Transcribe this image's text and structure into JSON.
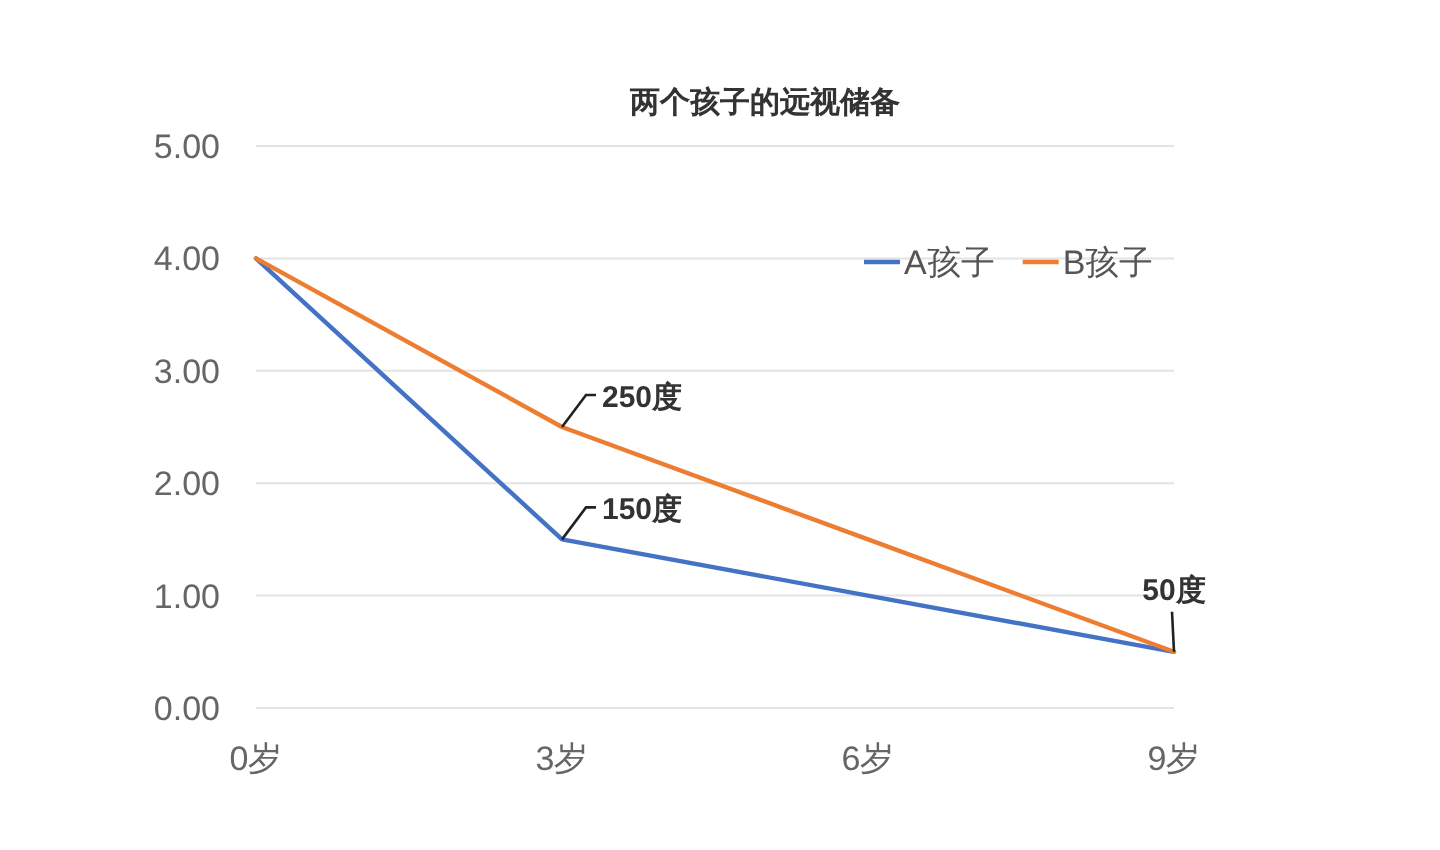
{
  "chart_data": {
    "type": "line",
    "title": "两个孩子的远视储备",
    "categories": [
      "0岁",
      "3岁",
      "6岁",
      "9岁"
    ],
    "series": [
      {
        "name": "A孩子",
        "color": "#4472c4",
        "values": [
          4.0,
          1.5,
          1.0,
          0.5
        ]
      },
      {
        "name": "B孩子",
        "color": "#ed7d31",
        "values": [
          4.0,
          2.5,
          1.5,
          0.5
        ]
      }
    ],
    "ylim": [
      0,
      5
    ],
    "yticks": [
      {
        "value": 0,
        "label": "0.00"
      },
      {
        "value": 1,
        "label": "1.00"
      },
      {
        "value": 2,
        "label": "2.00"
      },
      {
        "value": 3,
        "label": "3.00"
      },
      {
        "value": 4,
        "label": "4.00"
      },
      {
        "value": 5,
        "label": "5.00"
      }
    ],
    "grid": "y",
    "legend": "top right",
    "marker": "none",
    "line_style": "solid",
    "annotations": [
      {
        "text": "250度",
        "x": "3岁",
        "y": 2.5
      },
      {
        "text": "150度",
        "x": "3岁",
        "y": 1.5
      },
      {
        "text": "50度",
        "x": "9岁",
        "y": 0.5
      }
    ]
  }
}
